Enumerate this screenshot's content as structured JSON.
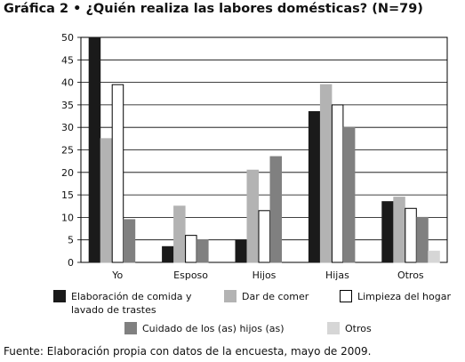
{
  "title": {
    "label": "Gráfica 2",
    "separator": "•",
    "question": "¿Quién realiza las labores domésticas? (N=79)"
  },
  "source": "Fuente: Elaboración propia con datos de la encuesta, mayo de 2009.",
  "chart_data": {
    "type": "bar",
    "categories": [
      "Yo",
      "Esposo",
      "Hijos",
      "Hijas",
      "Otros"
    ],
    "series": [
      {
        "name": "Elaboración de comida y lavado de trastes",
        "color": "#1a1a1a",
        "values": [
          50,
          3.5,
          5,
          33.5,
          13.5
        ]
      },
      {
        "name": "Dar de comer",
        "color": "#b3b3b3",
        "values": [
          27.5,
          12.5,
          20.5,
          39.5,
          14.5
        ]
      },
      {
        "name": "Limpieza del hogar",
        "color": "#ffffff",
        "values": [
          39.5,
          6,
          11.5,
          35,
          12
        ]
      },
      {
        "name": "Cuidado de los (as) hijos (as)",
        "color": "#808080",
        "values": [
          9.5,
          5,
          23.5,
          30,
          10
        ]
      },
      {
        "name": "Otros",
        "color": "#d6d6d6",
        "values": [
          0,
          0,
          0,
          0,
          2.5
        ]
      }
    ],
    "yticks": [
      0,
      5,
      10,
      15,
      20,
      25,
      30,
      35,
      40,
      45,
      50
    ],
    "ylim": [
      0,
      50
    ],
    "grid": true,
    "legend_position": "bottom"
  }
}
